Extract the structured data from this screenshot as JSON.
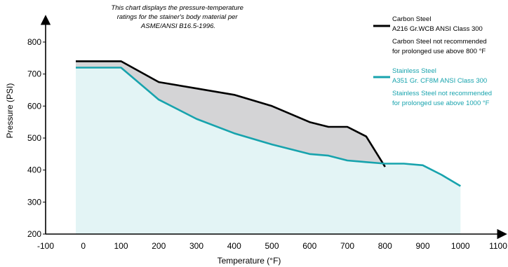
{
  "chart_data": {
    "type": "area",
    "note": [
      "This chart displays the pressure-temperature",
      "ratings  for the stainer's body material per",
      "ASME/ANSI B16.5-1996."
    ],
    "xlabel": "Temperature (°F)",
    "ylabel": "Pressure (PSI)",
    "xlim": [
      -100,
      1100
    ],
    "ylim": [
      200,
      850
    ],
    "xticks": [
      -100,
      0,
      100,
      200,
      300,
      400,
      500,
      600,
      700,
      800,
      900,
      1000,
      1100
    ],
    "yticks": [
      200,
      300,
      400,
      500,
      600,
      700,
      800
    ],
    "series": [
      {
        "name": "Carbon Steel",
        "color": "#000000",
        "fill": "#d4d4d6",
        "legend_lines": [
          "Carbon Steel",
          "A216 Gr.WCB ANSI Class 300",
          "Carbon Steel not recommended",
          "for prolonged use above 800 °F"
        ],
        "x": [
          -20,
          100,
          200,
          300,
          400,
          500,
          600,
          650,
          700,
          750,
          800
        ],
        "y": [
          740,
          740,
          675,
          655,
          635,
          600,
          550,
          535,
          535,
          505,
          410
        ]
      },
      {
        "name": "Stainless Steel",
        "color": "#17a3ad",
        "fill": "#e3f4f5",
        "legend_lines": [
          "Stainless Steel",
          "A351 Gr. CF8M ANSI Class 300",
          "Stainless Steel not recommended",
          "for prolonged use above 1000 °F"
        ],
        "x": [
          -20,
          100,
          200,
          300,
          400,
          500,
          600,
          650,
          700,
          750,
          800,
          850,
          900,
          950,
          1000
        ],
        "y": [
          720,
          720,
          620,
          560,
          515,
          480,
          450,
          445,
          430,
          425,
          420,
          420,
          415,
          385,
          350
        ]
      }
    ]
  }
}
